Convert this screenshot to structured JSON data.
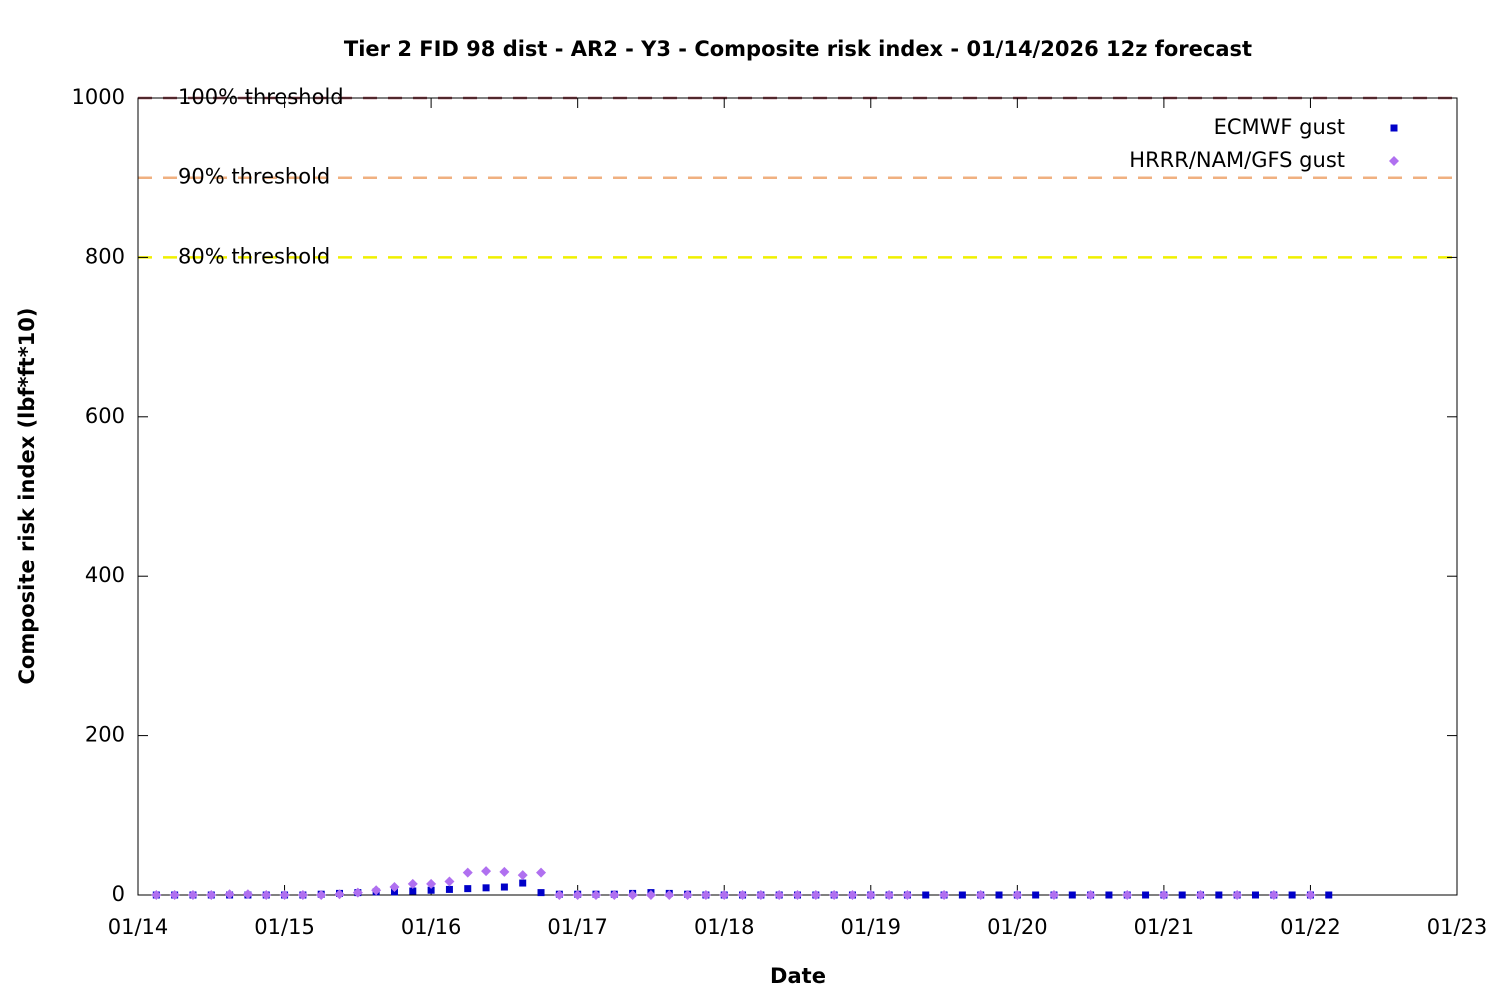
{
  "chart_data": {
    "type": "scatter",
    "title": "Tier 2 FID 98 dist - AR2 - Y3 - Composite risk index - 01/14/2026 12z forecast",
    "x_label": "Date",
    "y_label": "Composite risk index (lbf*ft*10)",
    "xlim": [
      14,
      23
    ],
    "xticks": [
      {
        "value": 14,
        "label": "01/14"
      },
      {
        "value": 15,
        "label": "01/15"
      },
      {
        "value": 16,
        "label": "01/16"
      },
      {
        "value": 17,
        "label": "01/17"
      },
      {
        "value": 18,
        "label": "01/18"
      },
      {
        "value": 19,
        "label": "01/19"
      },
      {
        "value": 20,
        "label": "01/20"
      },
      {
        "value": 21,
        "label": "01/21"
      },
      {
        "value": 22,
        "label": "01/22"
      },
      {
        "value": 23,
        "label": "01/23"
      }
    ],
    "ylim": [
      0,
      1000
    ],
    "yticks": [
      0,
      200,
      400,
      600,
      800,
      1000
    ],
    "legend": "top-right",
    "thresholds": [
      {
        "label": "100% threshold",
        "value": 1000,
        "color": "#a0505a"
      },
      {
        "label": "90% threshold",
        "value": 900,
        "color": "#f0b080"
      },
      {
        "label": "80% threshold",
        "value": 800,
        "color": "#f0f000"
      }
    ],
    "series": [
      {
        "name": "ECMWF gust",
        "color": "#0000c8",
        "marker": "square",
        "x": [
          14.125,
          14.25,
          14.375,
          14.5,
          14.625,
          14.75,
          14.875,
          15,
          15.125,
          15.25,
          15.375,
          15.5,
          15.625,
          15.75,
          15.875,
          16,
          16.125,
          16.25,
          16.375,
          16.5,
          16.625,
          16.75,
          16.875,
          17,
          17.125,
          17.25,
          17.375,
          17.5,
          17.625,
          17.75,
          17.875,
          18,
          18.125,
          18.25,
          18.375,
          18.5,
          18.625,
          18.75,
          18.875,
          19,
          19.125,
          19.25,
          19.375,
          19.5,
          19.625,
          19.75,
          19.875,
          20,
          20.125,
          20.25,
          20.375,
          20.5,
          20.625,
          20.75,
          20.875,
          21,
          21.125,
          21.25,
          21.375,
          21.5,
          21.625,
          21.75,
          21.875,
          22,
          22.125
        ],
        "values": [
          0,
          0,
          0,
          0,
          0,
          0,
          0,
          0,
          0,
          1,
          2,
          3,
          4,
          4,
          5,
          6,
          7,
          8,
          9,
          10,
          15,
          3,
          1,
          1,
          1,
          1,
          2,
          3,
          2,
          1,
          0,
          0,
          0,
          0,
          0,
          0,
          0,
          0,
          0,
          0,
          0,
          0,
          0,
          0,
          0,
          0,
          0,
          0,
          0,
          0,
          0,
          0,
          0,
          0,
          0,
          0,
          0,
          0,
          0,
          0,
          0,
          0,
          0,
          0,
          0
        ]
      },
      {
        "name": "HRRR/NAM/GFS gust",
        "color": "#b070f0",
        "marker": "diamond",
        "x": [
          14.125,
          14.25,
          14.375,
          14.5,
          14.625,
          14.75,
          14.875,
          15,
          15.125,
          15.25,
          15.375,
          15.5,
          15.625,
          15.75,
          15.875,
          16,
          16.125,
          16.25,
          16.375,
          16.5,
          16.625,
          16.75,
          16.875,
          17,
          17.125,
          17.25,
          17.375,
          17.5,
          17.625,
          17.75,
          17.875,
          18,
          18.125,
          18.25,
          18.375,
          18.5,
          18.625,
          18.75,
          18.875,
          19,
          19.125,
          19.25,
          19.5,
          19.75,
          20,
          20.25,
          20.5,
          20.75,
          21,
          21.25,
          21.5,
          21.75,
          22
        ],
        "values": [
          0,
          0,
          0,
          0,
          1,
          1,
          0,
          0,
          0,
          0,
          1,
          3,
          6,
          10,
          14,
          14,
          17,
          28,
          30,
          29,
          25,
          28,
          0,
          0,
          0,
          0,
          0,
          0,
          0,
          0,
          0,
          0,
          0,
          0,
          0,
          0,
          0,
          0,
          0,
          0,
          0,
          0,
          0,
          0,
          0,
          0,
          0,
          0,
          0,
          0,
          0,
          0,
          0
        ]
      }
    ]
  }
}
